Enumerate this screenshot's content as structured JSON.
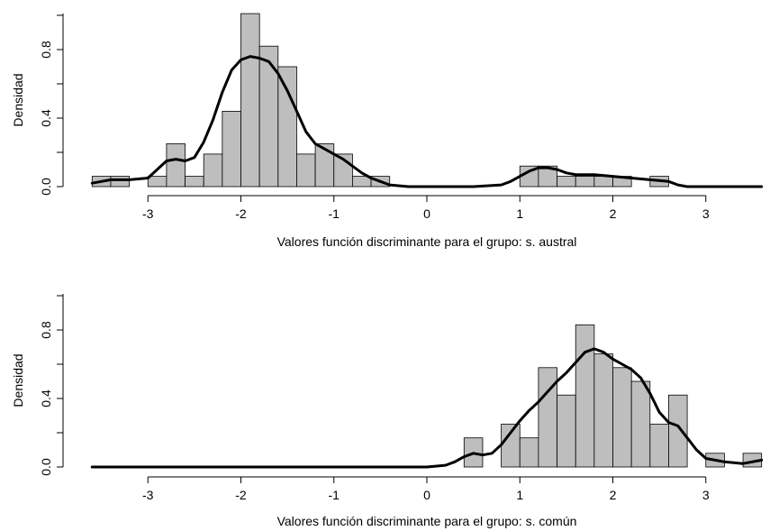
{
  "chart_data": [
    {
      "type": "histogram",
      "title": "",
      "xlabel": "Valores función discriminante para el grupo:  s. austral",
      "ylabel": "Densidad",
      "xlim": [
        -3.6,
        3.6
      ],
      "ylim": [
        0,
        1.0
      ],
      "xticks": [
        "-3",
        "-2",
        "-1",
        "0",
        "1",
        "2",
        "3"
      ],
      "yticks": [
        "0.0",
        "0.4",
        "0.8"
      ],
      "bin_width": 0.2,
      "bins": [
        {
          "x0": -3.6,
          "x1": -3.4,
          "density": 0.06
        },
        {
          "x0": -3.4,
          "x1": -3.2,
          "density": 0.06
        },
        {
          "x0": -3.0,
          "x1": -2.8,
          "density": 0.06
        },
        {
          "x0": -2.8,
          "x1": -2.6,
          "density": 0.25
        },
        {
          "x0": -2.6,
          "x1": -2.4,
          "density": 0.06
        },
        {
          "x0": -2.4,
          "x1": -2.2,
          "density": 0.19
        },
        {
          "x0": -2.2,
          "x1": -2.0,
          "density": 0.44
        },
        {
          "x0": -2.0,
          "x1": -1.8,
          "density": 1.01
        },
        {
          "x0": -1.8,
          "x1": -1.6,
          "density": 0.82
        },
        {
          "x0": -1.6,
          "x1": -1.4,
          "density": 0.7
        },
        {
          "x0": -1.4,
          "x1": -1.2,
          "density": 0.19
        },
        {
          "x0": -1.2,
          "x1": -1.0,
          "density": 0.25
        },
        {
          "x0": -1.0,
          "x1": -0.8,
          "density": 0.19
        },
        {
          "x0": -0.8,
          "x1": -0.6,
          "density": 0.06
        },
        {
          "x0": -0.6,
          "x1": -0.4,
          "density": 0.06
        },
        {
          "x0": 1.0,
          "x1": 1.2,
          "density": 0.12
        },
        {
          "x0": 1.2,
          "x1": 1.4,
          "density": 0.12
        },
        {
          "x0": 1.4,
          "x1": 1.6,
          "density": 0.06
        },
        {
          "x0": 1.6,
          "x1": 1.8,
          "density": 0.06
        },
        {
          "x0": 1.8,
          "x1": 2.0,
          "density": 0.06
        },
        {
          "x0": 2.0,
          "x1": 2.2,
          "density": 0.06
        },
        {
          "x0": 2.4,
          "x1": 2.6,
          "density": 0.06
        }
      ],
      "density_curve": [
        [
          -3.6,
          0.02
        ],
        [
          -3.4,
          0.04
        ],
        [
          -3.2,
          0.04
        ],
        [
          -3.0,
          0.05
        ],
        [
          -2.9,
          0.1
        ],
        [
          -2.8,
          0.15
        ],
        [
          -2.7,
          0.16
        ],
        [
          -2.6,
          0.15
        ],
        [
          -2.5,
          0.17
        ],
        [
          -2.4,
          0.26
        ],
        [
          -2.3,
          0.39
        ],
        [
          -2.2,
          0.55
        ],
        [
          -2.1,
          0.68
        ],
        [
          -2.0,
          0.74
        ],
        [
          -1.9,
          0.76
        ],
        [
          -1.8,
          0.75
        ],
        [
          -1.7,
          0.73
        ],
        [
          -1.6,
          0.66
        ],
        [
          -1.5,
          0.56
        ],
        [
          -1.4,
          0.44
        ],
        [
          -1.3,
          0.32
        ],
        [
          -1.2,
          0.25
        ],
        [
          -1.1,
          0.22
        ],
        [
          -1.0,
          0.19
        ],
        [
          -0.9,
          0.16
        ],
        [
          -0.8,
          0.12
        ],
        [
          -0.7,
          0.08
        ],
        [
          -0.6,
          0.05
        ],
        [
          -0.5,
          0.03
        ],
        [
          -0.4,
          0.01
        ],
        [
          -0.2,
          0.0
        ],
        [
          0.0,
          0.0
        ],
        [
          0.5,
          0.0
        ],
        [
          0.8,
          0.01
        ],
        [
          0.9,
          0.03
        ],
        [
          1.0,
          0.06
        ],
        [
          1.1,
          0.09
        ],
        [
          1.2,
          0.11
        ],
        [
          1.3,
          0.11
        ],
        [
          1.4,
          0.1
        ],
        [
          1.5,
          0.08
        ],
        [
          1.6,
          0.07
        ],
        [
          1.8,
          0.07
        ],
        [
          2.0,
          0.06
        ],
        [
          2.2,
          0.05
        ],
        [
          2.4,
          0.04
        ],
        [
          2.6,
          0.03
        ],
        [
          2.7,
          0.01
        ],
        [
          2.8,
          0.0
        ],
        [
          3.6,
          0.0
        ]
      ]
    },
    {
      "type": "histogram",
      "title": "",
      "xlabel": "Valores función discriminante para el grupo:  s. común",
      "ylabel": "Densidad",
      "xlim": [
        -3.6,
        3.6
      ],
      "ylim": [
        0,
        1.0
      ],
      "xticks": [
        "-3",
        "-2",
        "-1",
        "0",
        "1",
        "2",
        "3"
      ],
      "yticks": [
        "0.0",
        "0.4",
        "0.8"
      ],
      "bin_width": 0.2,
      "bins": [
        {
          "x0": 0.4,
          "x1": 0.6,
          "density": 0.17
        },
        {
          "x0": 0.8,
          "x1": 1.0,
          "density": 0.25
        },
        {
          "x0": 1.0,
          "x1": 1.2,
          "density": 0.17
        },
        {
          "x0": 1.2,
          "x1": 1.4,
          "density": 0.58
        },
        {
          "x0": 1.4,
          "x1": 1.6,
          "density": 0.42
        },
        {
          "x0": 1.6,
          "x1": 1.8,
          "density": 0.83
        },
        {
          "x0": 1.8,
          "x1": 2.0,
          "density": 0.66
        },
        {
          "x0": 2.0,
          "x1": 2.2,
          "density": 0.58
        },
        {
          "x0": 2.2,
          "x1": 2.4,
          "density": 0.5
        },
        {
          "x0": 2.4,
          "x1": 2.6,
          "density": 0.25
        },
        {
          "x0": 2.6,
          "x1": 2.8,
          "density": 0.42
        },
        {
          "x0": 3.0,
          "x1": 3.2,
          "density": 0.08
        },
        {
          "x0": 3.4,
          "x1": 3.6,
          "density": 0.08
        }
      ],
      "density_curve": [
        [
          -3.6,
          0.0
        ],
        [
          0.0,
          0.0
        ],
        [
          0.2,
          0.01
        ],
        [
          0.3,
          0.03
        ],
        [
          0.4,
          0.06
        ],
        [
          0.5,
          0.08
        ],
        [
          0.6,
          0.07
        ],
        [
          0.7,
          0.08
        ],
        [
          0.8,
          0.13
        ],
        [
          0.9,
          0.2
        ],
        [
          1.0,
          0.27
        ],
        [
          1.1,
          0.33
        ],
        [
          1.2,
          0.38
        ],
        [
          1.3,
          0.44
        ],
        [
          1.4,
          0.5
        ],
        [
          1.5,
          0.55
        ],
        [
          1.6,
          0.61
        ],
        [
          1.7,
          0.67
        ],
        [
          1.8,
          0.69
        ],
        [
          1.9,
          0.67
        ],
        [
          2.0,
          0.63
        ],
        [
          2.1,
          0.6
        ],
        [
          2.2,
          0.57
        ],
        [
          2.3,
          0.52
        ],
        [
          2.4,
          0.43
        ],
        [
          2.5,
          0.32
        ],
        [
          2.6,
          0.26
        ],
        [
          2.7,
          0.24
        ],
        [
          2.8,
          0.17
        ],
        [
          2.9,
          0.1
        ],
        [
          3.0,
          0.05
        ],
        [
          3.1,
          0.04
        ],
        [
          3.2,
          0.03
        ],
        [
          3.4,
          0.02
        ],
        [
          3.6,
          0.04
        ]
      ]
    }
  ]
}
